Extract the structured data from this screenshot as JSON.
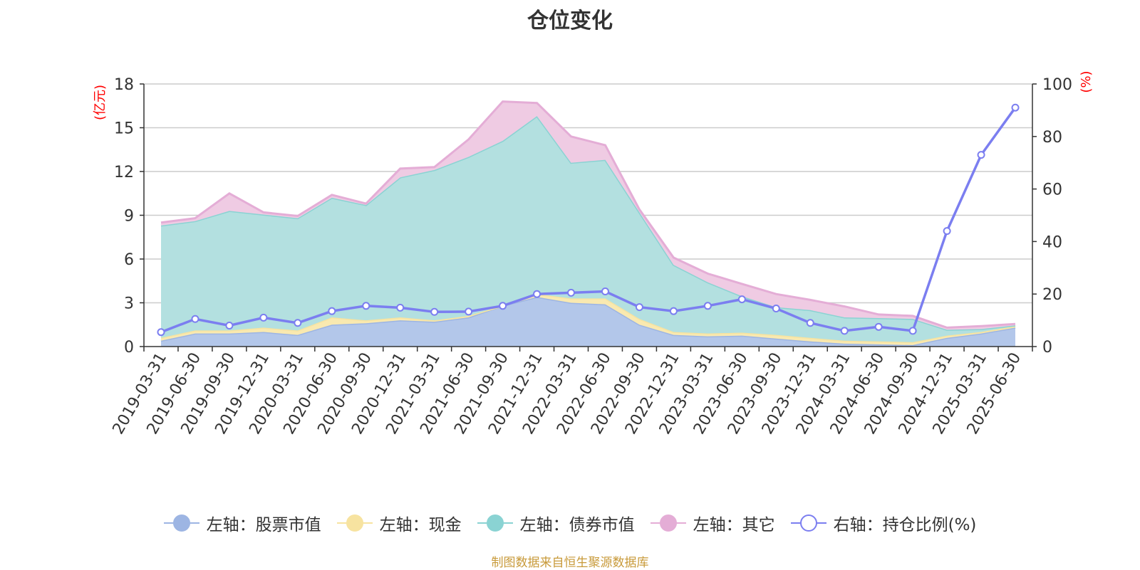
{
  "chart_data": {
    "type": "area",
    "title": "仓位变化",
    "left_axis_unit": "(亿元)",
    "right_axis_unit": "(%)",
    "left_ylim": [
      0,
      18
    ],
    "left_ticks": [
      "0",
      "3",
      "6",
      "9",
      "12",
      "15",
      "18"
    ],
    "right_ylim": [
      0,
      100
    ],
    "right_ticks": [
      "0",
      "20",
      "40",
      "60",
      "80",
      "100"
    ],
    "grid": true,
    "legend_position": "bottom",
    "categories": [
      "2019-03-31",
      "2019-06-30",
      "2019-09-30",
      "2019-12-31",
      "2020-03-31",
      "2020-06-30",
      "2020-09-30",
      "2020-12-31",
      "2021-03-31",
      "2021-06-30",
      "2021-09-30",
      "2021-12-31",
      "2022-03-31",
      "2022-06-30",
      "2022-09-30",
      "2022-12-31",
      "2023-03-31",
      "2023-06-30",
      "2023-09-30",
      "2023-12-31",
      "2024-03-31",
      "2024-06-30",
      "2024-09-30",
      "2024-12-31",
      "2025-03-31",
      "2025-06-30"
    ],
    "stacked_series": [
      {
        "name": "左轴：股票市值",
        "axis": "left",
        "color": "#9db5e3",
        "fill": "#b3c7ea",
        "values": [
          0.4,
          0.9,
          0.9,
          1.0,
          0.8,
          1.5,
          1.6,
          1.8,
          1.7,
          2.0,
          2.8,
          3.4,
          3.0,
          2.9,
          1.5,
          0.8,
          0.7,
          0.75,
          0.55,
          0.35,
          0.2,
          0.15,
          0.1,
          0.6,
          0.9,
          1.3
        ]
      },
      {
        "name": "左轴：现金",
        "axis": "left",
        "color": "#f7e3a0",
        "fill": "#f9e9b0",
        "values": [
          0.2,
          0.2,
          0.2,
          0.3,
          0.3,
          0.5,
          0.2,
          0.2,
          0.1,
          0.1,
          0.0,
          0.2,
          0.3,
          0.4,
          0.4,
          0.2,
          0.2,
          0.2,
          0.25,
          0.25,
          0.2,
          0.2,
          0.2,
          0.15,
          0.1,
          0.1
        ]
      },
      {
        "name": "左轴：债券市值",
        "axis": "left",
        "color": "#8ad3d3",
        "fill": "#b3e0e0",
        "values": [
          7.7,
          7.5,
          8.2,
          7.75,
          7.7,
          8.2,
          7.9,
          9.6,
          10.3,
          10.9,
          11.3,
          12.2,
          9.3,
          9.5,
          7.3,
          4.6,
          3.5,
          2.5,
          1.9,
          1.9,
          1.6,
          1.6,
          1.6,
          0.4,
          0.2,
          0.05
        ]
      },
      {
        "name": "左轴：其它",
        "axis": "left",
        "color": "#e4add6",
        "fill": "#efcbe3",
        "values": [
          0.2,
          0.2,
          1.2,
          0.15,
          0.15,
          0.2,
          0.1,
          0.6,
          0.2,
          1.2,
          2.7,
          0.9,
          1.8,
          1.0,
          0.2,
          0.5,
          0.6,
          0.85,
          0.9,
          0.7,
          0.75,
          0.25,
          0.2,
          0.15,
          0.2,
          0.1
        ]
      }
    ],
    "line_series": {
      "name": "右轴：持仓比例(%)",
      "axis": "right",
      "color": "#7b7ef0",
      "values": [
        5.5,
        10.5,
        8,
        11,
        9,
        13.5,
        15.5,
        14.8,
        13.2,
        13.3,
        15.5,
        20,
        20.5,
        21,
        15,
        13.5,
        15.5,
        18,
        14.5,
        9,
        6,
        7.5,
        6,
        44,
        73,
        91
      ]
    }
  },
  "footnote": "制图数据来自恒生聚源数据库"
}
